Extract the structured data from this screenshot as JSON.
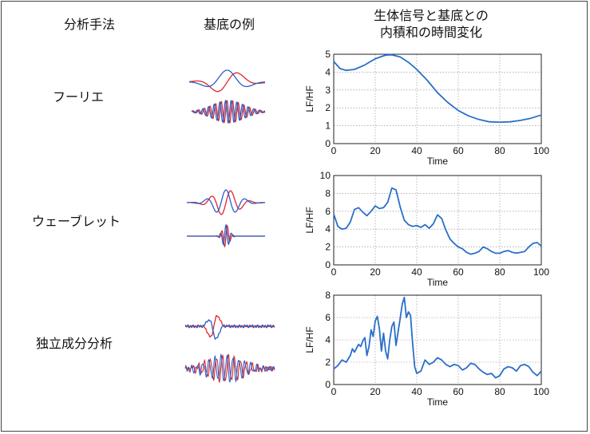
{
  "headers": {
    "method": "分析手法",
    "basis": "基底の例",
    "result_line1": "生体信号と基底との",
    "result_line2": "内積和の時間変化"
  },
  "methods": [
    {
      "label": "フーリエ"
    },
    {
      "label": "ウェーブレット"
    },
    {
      "label": "独立成分分析"
    }
  ],
  "colors": {
    "red": "#e0262b",
    "blue": "#2a5fc9",
    "curve": "#2a6fc8",
    "grid": "#888888"
  },
  "chart_data": [
    {
      "type": "line",
      "xlabel": "Time",
      "ylabel": "LF/HF",
      "xlim": [
        0,
        100
      ],
      "ylim": [
        0,
        5
      ],
      "xticks": [
        0,
        20,
        40,
        60,
        80,
        100
      ],
      "yticks": [
        0,
        1,
        2,
        3,
        4,
        5
      ],
      "grid": true,
      "x": [
        0,
        3,
        6,
        10,
        15,
        20,
        25,
        28,
        32,
        36,
        40,
        45,
        50,
        55,
        60,
        65,
        70,
        75,
        80,
        85,
        90,
        95,
        100
      ],
      "y": [
        4.6,
        4.2,
        4.1,
        4.15,
        4.4,
        4.75,
        4.95,
        4.97,
        4.85,
        4.55,
        4.15,
        3.55,
        2.85,
        2.3,
        1.85,
        1.55,
        1.35,
        1.22,
        1.2,
        1.22,
        1.3,
        1.42,
        1.6
      ]
    },
    {
      "type": "line",
      "xlabel": "Time",
      "ylabel": "LF/HF",
      "xlim": [
        0,
        100
      ],
      "ylim": [
        0,
        10
      ],
      "xticks": [
        0,
        20,
        40,
        60,
        80,
        100
      ],
      "yticks": [
        0,
        2,
        4,
        6,
        8,
        10
      ],
      "grid": true,
      "x": [
        0,
        2,
        4,
        6,
        8,
        10,
        12,
        14,
        16,
        18,
        20,
        22,
        24,
        26,
        28,
        30,
        32,
        34,
        36,
        38,
        40,
        42,
        44,
        46,
        48,
        50,
        52,
        54,
        56,
        58,
        60,
        62,
        64,
        66,
        68,
        70,
        72,
        74,
        76,
        78,
        80,
        82,
        84,
        86,
        88,
        90,
        92,
        94,
        96,
        98,
        100
      ],
      "y": [
        5.7,
        4.3,
        4.0,
        4.1,
        4.8,
        6.2,
        6.4,
        5.9,
        5.5,
        6.0,
        6.6,
        6.3,
        6.4,
        7.0,
        8.6,
        8.4,
        6.5,
        5.0,
        4.5,
        4.3,
        4.4,
        4.2,
        4.5,
        4.1,
        4.6,
        5.6,
        5.2,
        3.9,
        2.9,
        2.4,
        2.0,
        1.8,
        1.4,
        1.2,
        1.3,
        1.5,
        2.0,
        1.8,
        1.5,
        1.3,
        1.3,
        1.5,
        1.6,
        1.4,
        1.3,
        1.4,
        1.5,
        2.0,
        2.4,
        2.5,
        2.1
      ]
    },
    {
      "type": "line",
      "xlabel": "Time",
      "ylabel": "LF/HF",
      "xlim": [
        0,
        100
      ],
      "ylim": [
        0,
        8
      ],
      "xticks": [
        0,
        20,
        40,
        60,
        80,
        100
      ],
      "yticks": [
        0,
        2,
        4,
        6,
        8
      ],
      "grid": true,
      "x": [
        0,
        2,
        4,
        6,
        8,
        9,
        10,
        12,
        13,
        14,
        15,
        16,
        17,
        18,
        19,
        20,
        21,
        22,
        23,
        24,
        25,
        26,
        27,
        28,
        29,
        30,
        31,
        32,
        33,
        34,
        35,
        36,
        37,
        38,
        39,
        40,
        42,
        44,
        46,
        48,
        50,
        52,
        54,
        56,
        58,
        60,
        62,
        64,
        66,
        68,
        70,
        72,
        74,
        76,
        78,
        80,
        82,
        84,
        86,
        88,
        90,
        92,
        94,
        96,
        98,
        100
      ],
      "y": [
        1.4,
        1.7,
        2.2,
        2.0,
        2.6,
        3.2,
        2.9,
        3.6,
        3.4,
        3.9,
        4.2,
        2.6,
        3.4,
        4.9,
        4.3,
        5.7,
        6.1,
        5.0,
        3.0,
        4.6,
        3.0,
        2.3,
        4.0,
        5.2,
        5.6,
        3.5,
        4.7,
        5.9,
        7.2,
        7.8,
        6.0,
        6.5,
        6.2,
        3.7,
        1.6,
        1.0,
        1.2,
        2.2,
        1.8,
        2.0,
        2.4,
        2.2,
        1.8,
        1.6,
        1.8,
        1.7,
        1.3,
        1.5,
        1.9,
        1.8,
        1.4,
        1.1,
        0.9,
        1.0,
        0.6,
        0.8,
        1.4,
        1.6,
        1.5,
        1.2,
        1.7,
        1.8,
        1.6,
        1.1,
        0.8,
        1.2
      ]
    }
  ]
}
